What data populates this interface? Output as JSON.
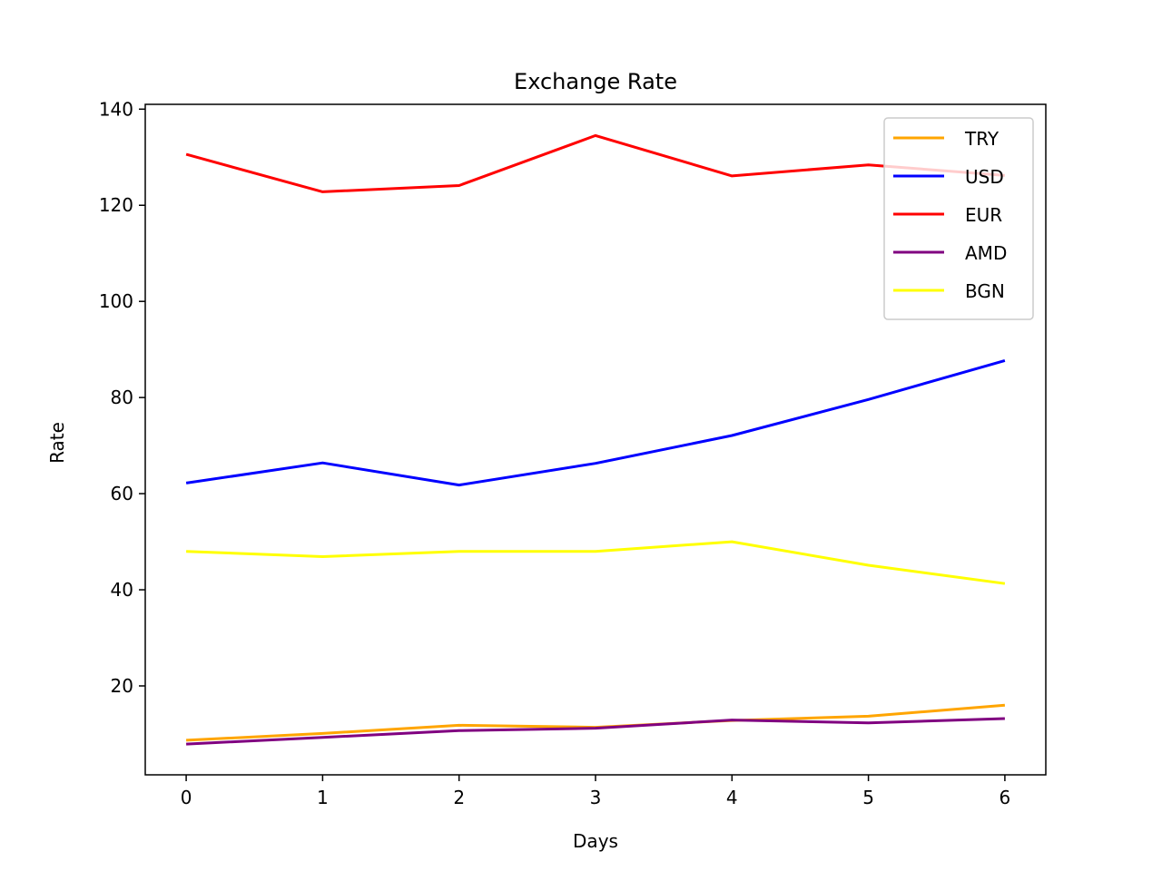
{
  "chart_data": {
    "type": "line",
    "title": "Exchange Rate",
    "xlabel": "Days",
    "ylabel": "Rate",
    "x": [
      0,
      1,
      2,
      3,
      4,
      5,
      6
    ],
    "xticks": [
      "0",
      "1",
      "2",
      "3",
      "4",
      "5",
      "6"
    ],
    "yticks": [
      "20",
      "40",
      "60",
      "80",
      "100",
      "120",
      "140"
    ],
    "xlim": [
      -0.3,
      6.3
    ],
    "ylim": [
      1.5,
      141
    ],
    "grid": false,
    "legend_position": "top-right",
    "series": [
      {
        "name": "TRY",
        "color": "#ffa500",
        "values": [
          8.7,
          10.1,
          11.8,
          11.4,
          12.8,
          13.7,
          16.0
        ]
      },
      {
        "name": "USD",
        "color": "#0000ff",
        "values": [
          62.2,
          66.4,
          61.8,
          66.3,
          72.1,
          79.6,
          87.7
        ]
      },
      {
        "name": "EUR",
        "color": "#ff0000",
        "values": [
          130.6,
          122.8,
          124.1,
          134.5,
          126.1,
          128.4,
          126.2
        ]
      },
      {
        "name": "AMD",
        "color": "#800080",
        "values": [
          7.9,
          9.3,
          10.7,
          11.2,
          12.9,
          12.3,
          13.2
        ]
      },
      {
        "name": "BGN",
        "color": "#ffff00",
        "values": [
          48.0,
          46.9,
          48.0,
          48.0,
          50.0,
          45.1,
          41.3
        ]
      }
    ]
  }
}
